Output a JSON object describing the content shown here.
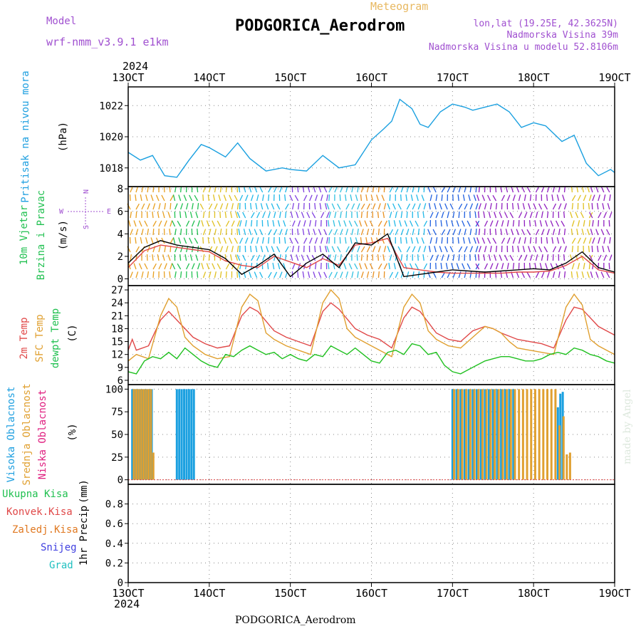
{
  "header": {
    "model_label": "Model",
    "model_name": "wrf-nmm_v3.9.1 e1km",
    "meteogram": "Meteogram",
    "station": "PODGORICA_Aerodrom",
    "lonlat": "lon,lat (19.25E, 42.3625N)",
    "elev": "Nadmorska Visina 39m",
    "elev_model": "Nadmorska Visina u modelu 52.8106m",
    "year_top": "2024",
    "year_bottom": "2024",
    "footer_station": "PODGORICA_Aerodrom",
    "credit": "made by Angel"
  },
  "colors": {
    "pressure": "#1aa0e0",
    "temp2m": "#e04848",
    "sfc": "#e0a030",
    "dew": "#20c020",
    "high": "#1aa0e0",
    "mid": "#e0a030",
    "low": "#e02080"
  },
  "chart_data": [
    {
      "id": "pressure",
      "type": "line",
      "title": "",
      "ylabel": [
        "Pritisak na nivou mora",
        "(hPa)"
      ],
      "xlabel": "",
      "x_ticks": [
        "13OCT",
        "14OCT",
        "15OCT",
        "16OCT",
        "17OCT",
        "18OCT",
        "19OCT"
      ],
      "ylim": [
        1016.8,
        1023.2
      ],
      "y_ticks": [
        "1018",
        "1020",
        "1022"
      ],
      "grid": true,
      "series": [
        {
          "color": "#1aa0e0",
          "x": [
            13.0,
            13.15,
            13.3,
            13.45,
            13.6,
            13.75,
            13.9,
            14.0,
            14.2,
            14.35,
            14.5,
            14.7,
            14.9,
            15.0,
            15.2,
            15.4,
            15.6,
            15.8,
            16.0,
            16.15,
            16.25,
            16.35,
            16.5,
            16.6,
            16.7,
            16.85,
            17.0,
            17.15,
            17.25,
            17.4,
            17.55,
            17.7,
            17.85,
            18.0,
            18.15,
            18.35,
            18.5,
            18.65,
            18.8,
            18.95,
            19.0
          ],
          "y": [
            1019.0,
            1018.5,
            1018.8,
            1017.5,
            1017.4,
            1018.5,
            1019.5,
            1019.3,
            1018.7,
            1019.6,
            1018.6,
            1017.8,
            1018.0,
            1017.9,
            1017.8,
            1018.8,
            1018.0,
            1018.2,
            1019.8,
            1020.5,
            1021.0,
            1022.4,
            1021.8,
            1020.8,
            1020.6,
            1021.6,
            1022.1,
            1021.9,
            1021.7,
            1021.9,
            1022.1,
            1021.6,
            1020.6,
            1020.9,
            1020.7,
            1019.7,
            1020.1,
            1018.3,
            1017.5,
            1017.9,
            1017.7
          ]
        }
      ]
    },
    {
      "id": "wind",
      "type": "line",
      "title": "",
      "ylabel": [
        "10m Vjetar",
        "Brzina i Pravac",
        "(m/s)"
      ],
      "compass": [
        "W",
        "E",
        "N",
        "S"
      ],
      "xlabel": "",
      "ylim": [
        -0.6,
        8.2
      ],
      "y_ticks": [
        "0",
        "2",
        "4",
        "6",
        "8"
      ],
      "grid": true,
      "barb_bands": [
        {
          "from": 13.0,
          "to": 13.55,
          "color": "#e8a020"
        },
        {
          "from": 13.55,
          "to": 13.9,
          "color": "#20c050"
        },
        {
          "from": 13.9,
          "to": 14.35,
          "color": "#e0c020"
        },
        {
          "from": 14.35,
          "to": 15.0,
          "color": "#20b8e8"
        },
        {
          "from": 15.0,
          "to": 15.45,
          "color": "#8040e0"
        },
        {
          "from": 15.45,
          "to": 15.85,
          "color": "#30c0e0"
        },
        {
          "from": 15.85,
          "to": 16.2,
          "color": "#e89020"
        },
        {
          "from": 16.2,
          "to": 16.7,
          "color": "#20b8e8"
        },
        {
          "from": 16.7,
          "to": 17.3,
          "color": "#2060e0"
        },
        {
          "from": 17.3,
          "to": 18.45,
          "color": "#9020c0"
        },
        {
          "from": 18.45,
          "to": 18.7,
          "color": "#e0c020"
        },
        {
          "from": 18.7,
          "to": 19.0,
          "color": "#9020c0"
        }
      ],
      "series": [
        {
          "name": "speed",
          "color": "#e04848",
          "x": [
            13.0,
            13.2,
            13.4,
            13.6,
            13.8,
            14.0,
            14.2,
            14.4,
            14.6,
            14.8,
            15.0,
            15.2,
            15.4,
            15.6,
            15.8,
            16.0,
            16.2,
            16.4,
            16.6,
            16.8,
            17.0,
            17.2,
            17.4,
            17.6,
            17.8,
            18.0,
            18.2,
            18.4,
            18.6,
            18.8,
            19.0
          ],
          "y": [
            1.0,
            2.5,
            3.0,
            2.8,
            2.6,
            2.4,
            1.6,
            1.2,
            1.0,
            2.0,
            1.5,
            1.0,
            1.8,
            1.2,
            3.0,
            3.2,
            3.6,
            1.0,
            0.8,
            0.6,
            0.5,
            0.5,
            0.5,
            0.5,
            0.6,
            0.6,
            0.7,
            1.2,
            2.0,
            0.8,
            0.5
          ]
        },
        {
          "name": "gust",
          "color": "#000000",
          "x": [
            13.0,
            13.2,
            13.4,
            13.6,
            13.8,
            14.0,
            14.2,
            14.4,
            14.6,
            14.8,
            15.0,
            15.2,
            15.4,
            15.6,
            15.8,
            16.0,
            16.2,
            16.4,
            16.6,
            16.8,
            17.0,
            17.2,
            17.4,
            17.6,
            17.8,
            18.0,
            18.2,
            18.4,
            18.6,
            18.8,
            19.0
          ],
          "y": [
            1.4,
            2.8,
            3.4,
            3.0,
            2.8,
            2.6,
            1.8,
            0.4,
            1.2,
            2.2,
            0.2,
            1.4,
            2.2,
            1.0,
            3.2,
            3.0,
            4.0,
            0.2,
            0.4,
            0.6,
            0.8,
            0.7,
            0.6,
            0.7,
            0.8,
            0.9,
            0.8,
            1.4,
            2.4,
            1.0,
            0.6
          ]
        }
      ]
    },
    {
      "id": "temperature",
      "type": "line",
      "title": "",
      "ylabel": [
        "2m Temp",
        "SFC Temp",
        "dewpt Temp",
        "(C)"
      ],
      "xlabel": "",
      "ylim": [
        5,
        28
      ],
      "y_ticks": [
        "6",
        "9",
        "12",
        "15",
        "18",
        "21",
        "24",
        "27"
      ],
      "grid": true,
      "series": [
        {
          "name": "2m Temp",
          "color": "#e04848",
          "x": [
            13.0,
            13.05,
            13.1,
            13.25,
            13.4,
            13.5,
            13.65,
            13.8,
            13.95,
            14.1,
            14.25,
            14.4,
            14.5,
            14.6,
            14.8,
            14.95,
            15.1,
            15.25,
            15.4,
            15.5,
            15.6,
            15.8,
            15.95,
            16.1,
            16.25,
            16.4,
            16.5,
            16.6,
            16.8,
            16.95,
            17.1,
            17.25,
            17.4,
            17.5,
            17.6,
            17.8,
            17.95,
            18.1,
            18.25,
            18.4,
            18.5,
            18.6,
            18.8,
            18.95,
            19.0
          ],
          "y": [
            13.0,
            15.5,
            13.0,
            14.0,
            20.0,
            22.0,
            19.0,
            16.0,
            14.5,
            13.5,
            14.0,
            21.0,
            23.0,
            22.0,
            17.5,
            16.0,
            15.0,
            14.0,
            22.0,
            24.0,
            22.5,
            18.0,
            16.5,
            15.5,
            13.5,
            20.5,
            23.0,
            22.0,
            17.0,
            15.5,
            15.0,
            17.5,
            18.5,
            18.0,
            17.0,
            15.5,
            15.0,
            14.5,
            13.5,
            20.0,
            23.0,
            22.5,
            18.5,
            17.0,
            16.5
          ]
        },
        {
          "name": "SFC Temp",
          "color": "#e0a030",
          "x": [
            13.0,
            13.1,
            13.25,
            13.4,
            13.5,
            13.6,
            13.7,
            13.8,
            13.95,
            14.1,
            14.25,
            14.4,
            14.5,
            14.6,
            14.7,
            14.8,
            14.95,
            15.1,
            15.25,
            15.4,
            15.5,
            15.6,
            15.7,
            15.8,
            15.95,
            16.1,
            16.25,
            16.4,
            16.5,
            16.6,
            16.7,
            16.8,
            16.95,
            17.1,
            17.25,
            17.4,
            17.5,
            17.6,
            17.7,
            17.8,
            17.95,
            18.1,
            18.25,
            18.4,
            18.5,
            18.6,
            18.7,
            18.8,
            18.95,
            19.0
          ],
          "y": [
            10.5,
            12.0,
            11.0,
            21.0,
            25.0,
            23.0,
            16.0,
            14.0,
            12.0,
            11.0,
            11.5,
            23.0,
            26.0,
            24.5,
            17.0,
            15.5,
            14.0,
            13.0,
            12.0,
            24.0,
            27.0,
            25.0,
            18.0,
            16.0,
            14.5,
            13.0,
            11.5,
            23.0,
            26.0,
            24.0,
            17.5,
            15.5,
            14.0,
            13.5,
            16.0,
            18.5,
            18.0,
            17.0,
            15.0,
            13.5,
            13.0,
            12.5,
            12.0,
            23.0,
            26.0,
            23.5,
            15.5,
            14.0,
            12.5,
            12.0
          ]
        },
        {
          "name": "dewpt Temp",
          "color": "#20c020",
          "x": [
            13.0,
            13.1,
            13.2,
            13.3,
            13.4,
            13.5,
            13.6,
            13.7,
            13.8,
            13.9,
            14.0,
            14.1,
            14.2,
            14.3,
            14.4,
            14.5,
            14.6,
            14.7,
            14.8,
            14.9,
            15.0,
            15.1,
            15.2,
            15.3,
            15.4,
            15.5,
            15.6,
            15.7,
            15.8,
            15.9,
            16.0,
            16.1,
            16.2,
            16.3,
            16.4,
            16.5,
            16.6,
            16.7,
            16.8,
            16.9,
            17.0,
            17.1,
            17.2,
            17.3,
            17.4,
            17.5,
            17.6,
            17.7,
            17.8,
            17.9,
            18.0,
            18.1,
            18.2,
            18.3,
            18.4,
            18.5,
            18.6,
            18.7,
            18.8,
            18.9,
            19.0
          ],
          "y": [
            8.0,
            7.5,
            10.5,
            11.5,
            11.0,
            12.5,
            11.0,
            13.5,
            12.0,
            10.5,
            9.5,
            9.0,
            12.0,
            11.5,
            13.0,
            14.0,
            13.0,
            12.0,
            12.5,
            11.0,
            12.0,
            11.0,
            10.5,
            12.0,
            11.5,
            14.0,
            13.0,
            12.0,
            13.5,
            12.0,
            10.5,
            10.0,
            12.5,
            13.0,
            12.0,
            14.5,
            14.0,
            12.0,
            12.5,
            9.5,
            8.0,
            7.5,
            8.5,
            9.5,
            10.5,
            11.0,
            11.5,
            11.5,
            11.0,
            10.5,
            10.5,
            11.0,
            12.0,
            12.5,
            12.0,
            13.5,
            13.0,
            12.0,
            11.5,
            10.5,
            10.0
          ]
        }
      ]
    },
    {
      "id": "cloud",
      "type": "bar",
      "title": "",
      "ylabel": [
        "Visoka Oblacnost",
        "Srednja Oblacnost",
        "Niska Oblacnost",
        "(%)"
      ],
      "xlabel": "",
      "ylim": [
        -5,
        105
      ],
      "y_ticks": [
        "0",
        "25",
        "50",
        "75",
        "100"
      ],
      "grid": true,
      "series": [
        {
          "name": "Visoka Oblacnost",
          "color": "#1aa0e0",
          "x": [
            13.05,
            13.08,
            13.11,
            13.14,
            13.17,
            13.2,
            13.23,
            13.26,
            13.29,
            13.6,
            13.63,
            13.66,
            13.69,
            13.72,
            13.75,
            13.78,
            13.81,
            17.0,
            17.05,
            17.1,
            17.15,
            17.2,
            17.25,
            17.3,
            17.35,
            17.4,
            17.45,
            17.5,
            17.55,
            17.6,
            17.65,
            17.7,
            17.75,
            18.3,
            18.33,
            18.36
          ],
          "y": [
            100,
            100,
            100,
            100,
            100,
            100,
            100,
            100,
            100,
            100,
            100,
            100,
            100,
            100,
            100,
            100,
            100,
            100,
            100,
            100,
            100,
            100,
            100,
            100,
            100,
            100,
            100,
            100,
            100,
            100,
            100,
            100,
            100,
            80,
            95,
            97
          ]
        },
        {
          "name": "Srednja Oblacnost",
          "color": "#e0a030",
          "x": [
            13.07,
            13.1,
            13.13,
            13.16,
            13.19,
            13.22,
            13.25,
            13.28,
            13.31,
            17.02,
            17.07,
            17.12,
            17.17,
            17.22,
            17.27,
            17.32,
            17.37,
            17.42,
            17.47,
            17.52,
            17.57,
            17.62,
            17.67,
            17.72,
            17.77,
            17.82,
            17.87,
            17.92,
            17.97,
            18.02,
            18.07,
            18.12,
            18.17,
            18.22,
            18.27,
            18.32,
            18.37,
            18.41,
            18.45
          ],
          "y": [
            100,
            100,
            100,
            100,
            100,
            100,
            100,
            100,
            30,
            100,
            100,
            100,
            100,
            100,
            100,
            100,
            100,
            100,
            100,
            100,
            100,
            100,
            100,
            100,
            100,
            100,
            100,
            100,
            100,
            100,
            100,
            100,
            100,
            100,
            100,
            60,
            70,
            28,
            30
          ]
        },
        {
          "name": "Niska Oblacnost",
          "color": "#e02080",
          "x": [],
          "y": []
        }
      ]
    },
    {
      "id": "precip",
      "type": "line",
      "title": "",
      "ylabel": [
        "1hr Precip",
        "(mm)"
      ],
      "legend_labels": [
        "Ukupna Kisa",
        "Konvek.Kisa",
        "Zaledj.Kisa",
        "Snijeg",
        "Grad"
      ],
      "legend_colors": [
        "#20c050",
        "#e04848",
        "#e07820",
        "#4040e0",
        "#20c0c0"
      ],
      "xlabel": "",
      "x_ticks": [
        "13OCT",
        "14OCT",
        "15OCT",
        "16OCT",
        "17OCT",
        "18OCT",
        "19OCT"
      ],
      "ylim": [
        0,
        1.0
      ],
      "y_ticks": [
        "0",
        "0.2",
        "0.4",
        "0.6",
        "0.8"
      ],
      "grid": true,
      "series": []
    }
  ]
}
